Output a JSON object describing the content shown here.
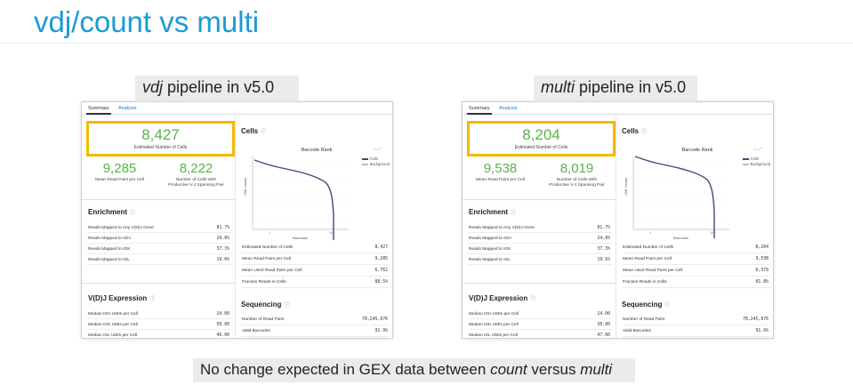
{
  "slide": {
    "title": "vdj/count vs multi",
    "caption_left_italic": "vdj",
    "caption_left_rest": " pipeline in v5.0",
    "caption_right_italic": "multi",
    "caption_right_rest": " pipeline in v5.0",
    "bottom_pre": "No change expected in GEX data between ",
    "bottom_i1": "count",
    "bottom_mid": " versus ",
    "bottom_i2": "multi"
  },
  "panels": [
    {
      "tabs": {
        "summary": "Summary",
        "analysis": "Analysis"
      },
      "est_cells": "8,427",
      "est_cells_label": "Estimated Number of Cells",
      "mean_reads": "9,285",
      "mean_reads_label": "Mean Read Pairs per Cell",
      "productive": "8,222",
      "productive_label_1": "Number of Cells With",
      "productive_label_2": "Productive V-J Spanning Pair",
      "enrichment_title": "Enrichment",
      "enrichment": [
        {
          "k": "Reads Mapped to Any V(D)J Gene",
          "v": "81.7%"
        },
        {
          "k": "Reads Mapped to IGH",
          "v": "24.8%"
        },
        {
          "k": "Reads Mapped to IGK",
          "v": "37.3%"
        },
        {
          "k": "Reads Mapped to IGL",
          "v": "19.6%"
        }
      ],
      "vdj_title": "V(D)J Expression",
      "vdj": [
        {
          "k": "Median IGH UMIs per Cell",
          "v": "24.00"
        },
        {
          "k": "Median IGK UMIs per Cell",
          "v": "50.00"
        },
        {
          "k": "Median IGL UMIs per Cell",
          "v": "46.00"
        }
      ],
      "cells_title": "Cells",
      "chart_title": "Barcode Rank",
      "chart_ylabel": "UMI counts",
      "chart_xlabel": "Barcodes",
      "legend_cells": "Cells",
      "legend_background": "Background",
      "xtick_1": "1",
      "xtick_10k": "10k",
      "cells": [
        {
          "k": "Estimated Number of Cells",
          "v": "8,427"
        },
        {
          "k": "Mean Read Pairs per Cell",
          "v": "9,285"
        },
        {
          "k": "Mean Used Read Pairs per Cell",
          "v": "6,762"
        },
        {
          "k": "Fraction Reads in Cells",
          "v": "88.5%"
        }
      ],
      "sequencing_title": "Sequencing",
      "sequencing": [
        {
          "k": "Number of Read Pairs",
          "v": "78,245,676"
        },
        {
          "k": "Valid Barcodes",
          "v": "91.9%"
        }
      ]
    },
    {
      "tabs": {
        "summary": "Summary",
        "analysis": "Analysis"
      },
      "est_cells": "8,204",
      "est_cells_label": "Estimated Number of Cells",
      "mean_reads": "9,538",
      "mean_reads_label": "Mean Read Pairs per Cell",
      "productive": "8,019",
      "productive_label_1": "Number of Cells With",
      "productive_label_2": "Productive V-J Spanning Pair",
      "enrichment_title": "Enrichment",
      "enrichment": [
        {
          "k": "Reads Mapped to Any V(D)J Gene",
          "v": "81.7%"
        },
        {
          "k": "Reads Mapped to IGH",
          "v": "24.8%"
        },
        {
          "k": "Reads Mapped to IGK",
          "v": "37.3%"
        },
        {
          "k": "Reads Mapped to IGL",
          "v": "19.6%"
        }
      ],
      "vdj_title": "V(D)J Expression",
      "vdj": [
        {
          "k": "Median IGH UMIs per Cell",
          "v": "24.00"
        },
        {
          "k": "Median IGK UMIs per Cell",
          "v": "50.00"
        },
        {
          "k": "Median IGL UMIs per Cell",
          "v": "47.00"
        }
      ],
      "cells_title": "Cells",
      "chart_title": "Barcode Rank",
      "chart_ylabel": "UMI counts",
      "chart_xlabel": "Barcodes",
      "legend_cells": "Cells",
      "legend_background": "Background",
      "xtick_1": "1",
      "xtick_10k": "10k",
      "cells": [
        {
          "k": "Estimated Number of Cells",
          "v": "8,204"
        },
        {
          "k": "Mean Read Pairs per Cell",
          "v": "9,538"
        },
        {
          "k": "Mean Used Read Pairs per Cell",
          "v": "6,379"
        },
        {
          "k": "Fraction Reads in Cells",
          "v": "81.8%"
        }
      ],
      "sequencing_title": "Sequencing",
      "sequencing": [
        {
          "k": "Number of Read Pairs",
          "v": "78,245,676"
        },
        {
          "k": "Valid Barcodes",
          "v": "91.9%"
        }
      ]
    }
  ],
  "colors": {
    "title_blue": "#1a9bd7",
    "metric_green": "#5ab04a",
    "highlight_yellow": "#f5b800",
    "curve_navy": "#3a4a7a"
  }
}
